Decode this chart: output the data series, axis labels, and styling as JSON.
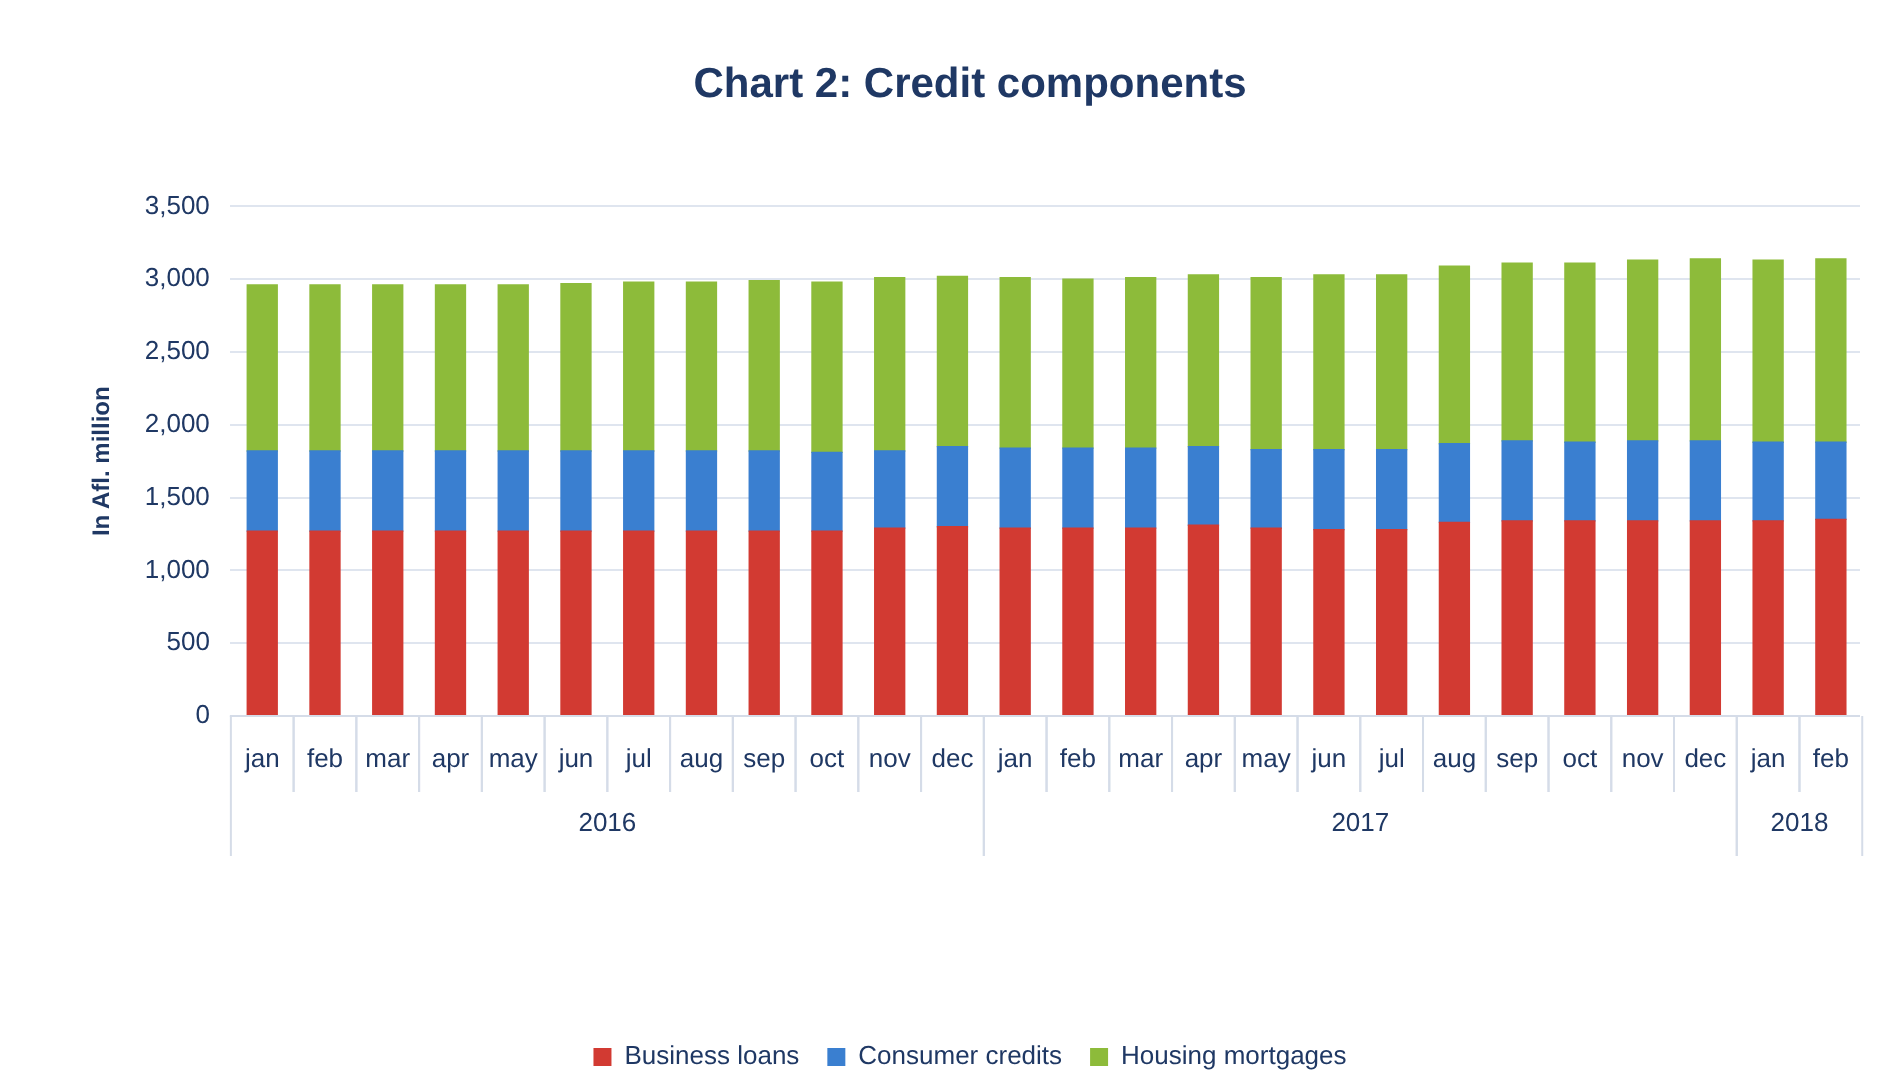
{
  "chart_data": {
    "type": "bar",
    "title": "Chart 2: Credit components",
    "ylabel": "In Afl. million",
    "stacked": true,
    "grid": "y",
    "legend": "bottom",
    "x": [
      "2016-01",
      "2016-02",
      "2016-03",
      "2016-04",
      "2016-05",
      "2016-06",
      "2016-07",
      "2016-08",
      "2016-09",
      "2016-10",
      "2016-11",
      "2016-12",
      "2017-01",
      "2017-02",
      "2017-03",
      "2017-04",
      "2017-05",
      "2017-06",
      "2017-07",
      "2017-08",
      "2017-09",
      "2017-10",
      "2017-11",
      "2017-12",
      "2018-01",
      "2018-02"
    ],
    "xlim": [
      "2015-12-16",
      "2018-02-14"
    ],
    "annotations": [
      "2016",
      "2017",
      "2018"
    ],
    "xticks": [
      {
        "value": "2016-01",
        "label": "jan"
      },
      {
        "value": "2016-02",
        "label": "feb"
      },
      {
        "value": "2016-03",
        "label": "mar"
      },
      {
        "value": "2016-04",
        "label": "apr"
      },
      {
        "value": "2016-05",
        "label": "may"
      },
      {
        "value": "2016-06",
        "label": "jun"
      },
      {
        "value": "2016-07",
        "label": "jul"
      },
      {
        "value": "2016-08",
        "label": "aug"
      },
      {
        "value": "2016-09",
        "label": "sep"
      },
      {
        "value": "2016-10",
        "label": "oct"
      },
      {
        "value": "2016-11",
        "label": "nov"
      },
      {
        "value": "2016-12",
        "label": "dec"
      },
      {
        "value": "2017-01",
        "label": "jan"
      },
      {
        "value": "2017-02",
        "label": "feb"
      },
      {
        "value": "2017-03",
        "label": "mar"
      },
      {
        "value": "2017-04",
        "label": "apr"
      },
      {
        "value": "2017-05",
        "label": "may"
      },
      {
        "value": "2017-06",
        "label": "jun"
      },
      {
        "value": "2017-07",
        "label": "jul"
      },
      {
        "value": "2017-08",
        "label": "aug"
      },
      {
        "value": "2017-09",
        "label": "sep"
      },
      {
        "value": "2017-10",
        "label": "oct"
      },
      {
        "value": "2017-11",
        "label": "nov"
      },
      {
        "value": "2017-12",
        "label": "dec"
      },
      {
        "value": "2018-01",
        "label": "jan"
      },
      {
        "value": "2018-02",
        "label": "feb"
      }
    ],
    "ylim": [
      0,
      3500
    ],
    "yticks": [
      0,
      500,
      {
        "value": 1000,
        "label": "1,000"
      },
      {
        "value": 1500,
        "label": "1,500"
      },
      {
        "value": 2000,
        "label": "2,000"
      },
      {
        "value": 2500,
        "label": "2,500"
      },
      {
        "value": 3000,
        "label": "3,000"
      },
      {
        "value": 3500,
        "label": "3,500"
      }
    ],
    "series": [
      {
        "name": "Business loans",
        "color": "#d23a32",
        "values": [
          1270,
          1270,
          1270,
          1270,
          1270,
          1270,
          1270,
          1270,
          1270,
          1270,
          1290,
          1300,
          1290,
          1290,
          1290,
          1310,
          1290,
          1280,
          1280,
          1330,
          1340,
          1340,
          1340,
          1340,
          1340,
          1350
        ]
      },
      {
        "name": "Consumer credits",
        "color": "#3a7fd0",
        "values": [
          550,
          550,
          550,
          550,
          550,
          550,
          550,
          550,
          550,
          540,
          530,
          550,
          550,
          550,
          550,
          540,
          540,
          550,
          550,
          540,
          550,
          540,
          550,
          550,
          540,
          530
        ]
      },
      {
        "name": "Housing mortgages",
        "color": "#8dbb3a",
        "values": [
          1140,
          1140,
          1140,
          1140,
          1140,
          1150,
          1160,
          1160,
          1170,
          1170,
          1190,
          1170,
          1170,
          1160,
          1170,
          1180,
          1180,
          1200,
          1200,
          1220,
          1220,
          1230,
          1240,
          1250,
          1250,
          1260
        ]
      }
    ]
  }
}
